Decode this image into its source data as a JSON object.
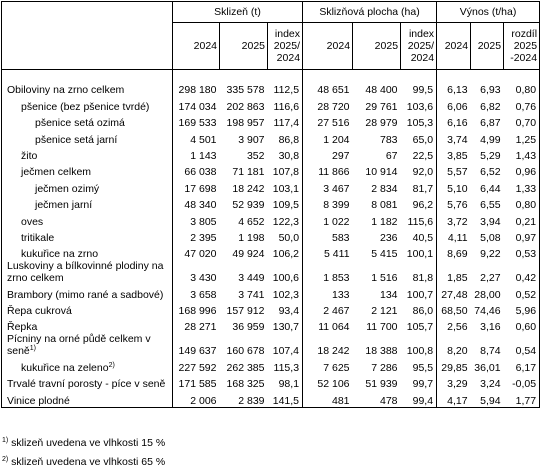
{
  "header": {
    "groups": [
      "Sklizeň (t)",
      "Sklizňová plocha (ha)",
      "Výnos (t/ha)"
    ],
    "columns": [
      "2024",
      "2025",
      "index 2025/ 2024",
      "2024",
      "2025",
      "index 2025/ 2024",
      "2024",
      "2025",
      "rozdíl 2025 -2024"
    ]
  },
  "rows": [
    {
      "label": "Obiloviny na zrno celkem",
      "values": [
        "298 180",
        "335 578",
        "112,5",
        "48 651",
        "48 400",
        "99,5",
        "6,13",
        "6,93",
        "0,80"
      ]
    },
    {
      "label": "pšenice (bez pšenice tvrdé)",
      "values": [
        "174 034",
        "202 863",
        "116,6",
        "28 720",
        "29 761",
        "103,6",
        "6,06",
        "6,82",
        "0,76"
      ]
    },
    {
      "label": "pšenice setá ozimá",
      "values": [
        "169 533",
        "198 957",
        "117,4",
        "27 516",
        "28 979",
        "105,3",
        "6,16",
        "6,87",
        "0,70"
      ]
    },
    {
      "label": "pšenice setá jarní",
      "values": [
        "4 501",
        "3 907",
        "86,8",
        "1 204",
        "783",
        "65,0",
        "3,74",
        "4,99",
        "1,25"
      ]
    },
    {
      "label": "žito",
      "values": [
        "1 143",
        "352",
        "30,8",
        "297",
        "67",
        "22,5",
        "3,85",
        "5,29",
        "1,43"
      ]
    },
    {
      "label": "ječmen celkem",
      "values": [
        "66 038",
        "71 181",
        "107,8",
        "11 866",
        "10 914",
        "92,0",
        "5,57",
        "6,52",
        "0,96"
      ]
    },
    {
      "label": "ječmen ozimý",
      "values": [
        "17 698",
        "18 242",
        "103,1",
        "3 467",
        "2 834",
        "81,7",
        "5,10",
        "6,44",
        "1,33"
      ]
    },
    {
      "label": "ječmen jarní",
      "values": [
        "48 340",
        "52 939",
        "109,5",
        "8 399",
        "8 081",
        "96,2",
        "5,76",
        "6,55",
        "0,80"
      ]
    },
    {
      "label": "oves",
      "values": [
        "3 805",
        "4 652",
        "122,3",
        "1 022",
        "1 182",
        "115,6",
        "3,72",
        "3,94",
        "0,21"
      ]
    },
    {
      "label": "tritikale",
      "values": [
        "2 395",
        "1 198",
        "50,0",
        "583",
        "236",
        "40,5",
        "4,11",
        "5,08",
        "0,97"
      ]
    },
    {
      "label": "kukuřice na zrno",
      "values": [
        "47 020",
        "49 924",
        "106,2",
        "5 411",
        "5 415",
        "100,1",
        "8,69",
        "9,22",
        "0,53"
      ]
    },
    {
      "label": "Luskoviny a bílkovinné plodiny na zrno celkem",
      "values": [
        "3 430",
        "3 449",
        "100,6",
        "1 853",
        "1 516",
        "81,8",
        "1,85",
        "2,27",
        "0,42"
      ]
    },
    {
      "label": "Brambory (mimo rané a sadbové)",
      "values": [
        "3 658",
        "3 741",
        "102,3",
        "133",
        "134",
        "100,7",
        "27,48",
        "28,00",
        "0,52"
      ]
    },
    {
      "label": "Řepa cukrová",
      "values": [
        "168 996",
        "157 912",
        "93,4",
        "2 467",
        "2 121",
        "86,0",
        "68,50",
        "74,46",
        "5,96"
      ]
    },
    {
      "label": "Řepka",
      "values": [
        "28 271",
        "36 959",
        "130,7",
        "11 064",
        "11 700",
        "105,7",
        "2,56",
        "3,16",
        "0,60"
      ]
    },
    {
      "label": "Pícniny na orné půdě celkem v seně",
      "note": "1)",
      "values": [
        "149 637",
        "160 678",
        "107,4",
        "18 242",
        "18 388",
        "100,8",
        "8,20",
        "8,74",
        "0,54"
      ]
    },
    {
      "label": "kukuřice na zeleno",
      "note": "2)",
      "values": [
        "227 592",
        "262 385",
        "115,3",
        "7 625",
        "7 286",
        "95,5",
        "29,85",
        "36,01",
        "6,17"
      ]
    },
    {
      "label": "Trvalé travní porosty - píce v seně",
      "values": [
        "171 585",
        "168 325",
        "98,1",
        "52 106",
        "51 939",
        "99,7",
        "3,29",
        "3,24",
        "-0,05"
      ]
    },
    {
      "label": "Vinice plodné",
      "values": [
        "2 006",
        "2 839",
        "141,5",
        "481",
        "478",
        "99,4",
        "4,17",
        "5,94",
        "1,77"
      ]
    }
  ],
  "footnotes": [
    {
      "mark": "1)",
      "text": "sklizeň uvedena ve vlhkosti 15 %"
    },
    {
      "mark": "2)",
      "text": "sklizeň uvedena ve vlhkosti 65 %"
    }
  ]
}
